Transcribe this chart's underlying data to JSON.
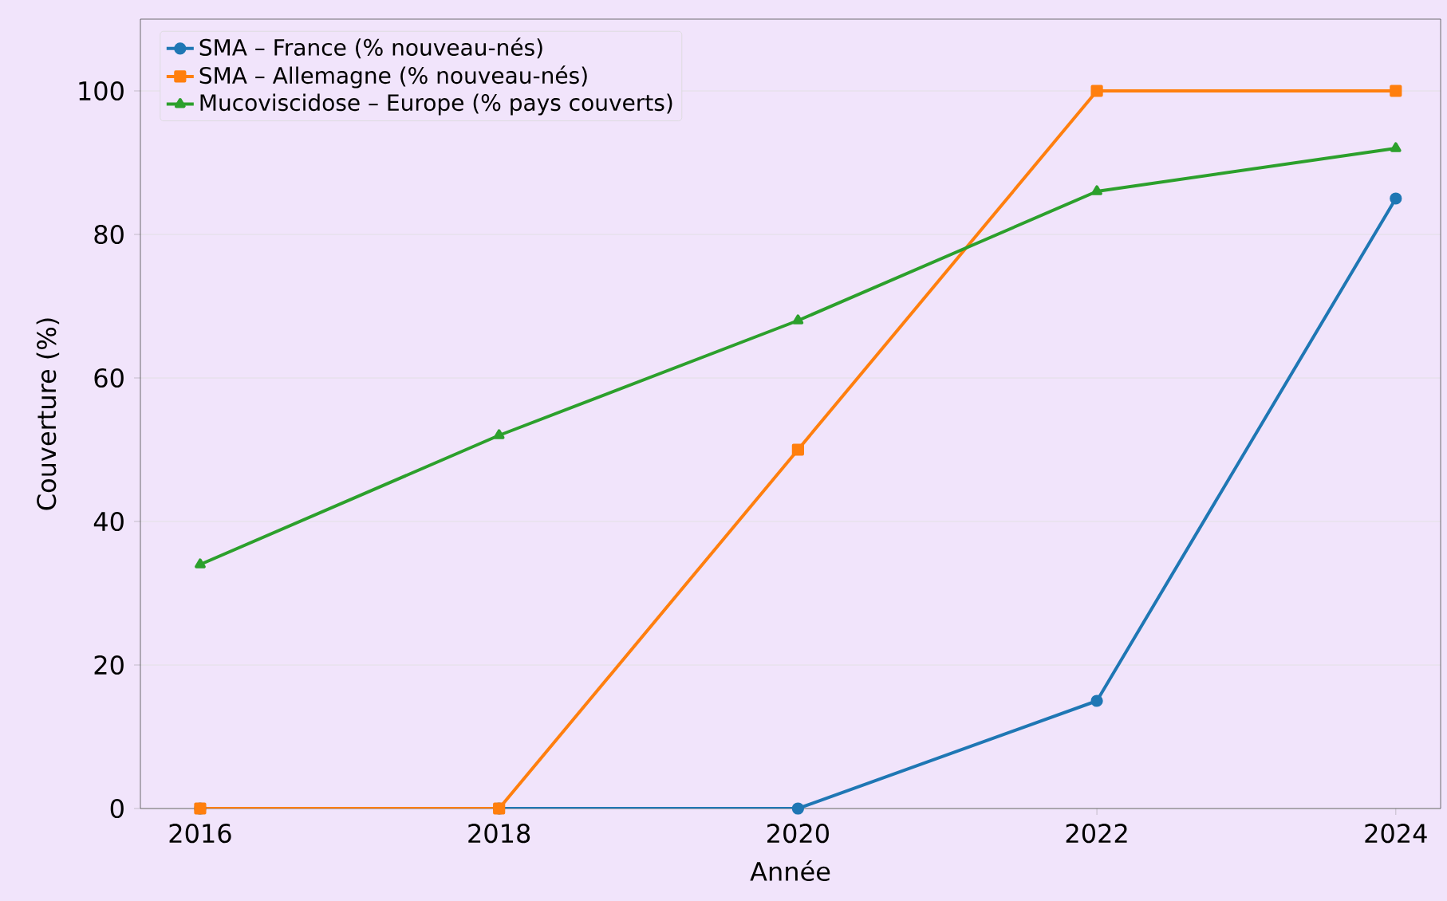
{
  "chart_data": {
    "type": "line",
    "xlabel": "Année",
    "ylabel": "Couverture (%)",
    "x": [
      2016,
      2018,
      2020,
      2022,
      2024
    ],
    "series": [
      {
        "name": "SMA – France (% nouveau-nés)",
        "color": "#1f77b4",
        "marker": "circle",
        "values": [
          0,
          0,
          0,
          15,
          85
        ]
      },
      {
        "name": "SMA – Allemagne (% nouveau-nés)",
        "color": "#ff7f0e",
        "marker": "square",
        "values": [
          0,
          0,
          50,
          100,
          100
        ]
      },
      {
        "name": "Mucoviscidose – Europe (% pays couverts)",
        "color": "#2ca02c",
        "marker": "triangle",
        "values": [
          34,
          52,
          68,
          86,
          92
        ]
      }
    ],
    "xlim": [
      2015.6,
      2024.3
    ],
    "ylim": [
      0,
      110
    ],
    "xticks": [
      2016,
      2018,
      2020,
      2022,
      2024
    ],
    "yticks": [
      0,
      20,
      40,
      60,
      80,
      100
    ],
    "grid": "y",
    "legend": "top left",
    "line_style": "solid"
  }
}
